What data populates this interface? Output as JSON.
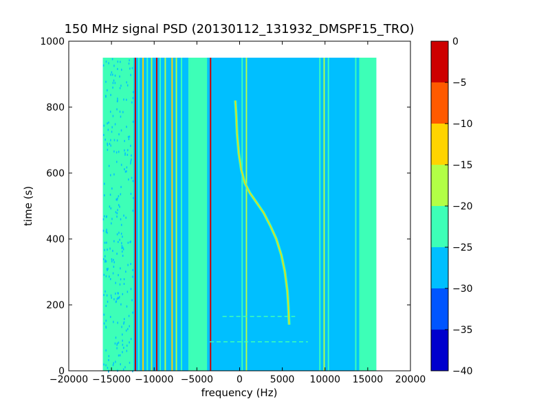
{
  "chart_data": {
    "type": "heatmap",
    "title": "150 MHz signal PSD (20130112_131932_DMSPF15_TRO)",
    "xlabel": "frequency (Hz)",
    "ylabel": "time (s)",
    "xlim": [
      -20000,
      20000
    ],
    "ylim": [
      0,
      1000
    ],
    "xticks": [
      -20000,
      -15000,
      -10000,
      -5000,
      0,
      5000,
      10000,
      15000,
      20000
    ],
    "xtick_labels": [
      "−20000",
      "−15000",
      "−10000",
      "−5000",
      "0",
      "5000",
      "10000",
      "15000",
      "20000"
    ],
    "yticks": [
      0,
      200,
      400,
      600,
      800,
      1000
    ],
    "ytick_labels": [
      "0",
      "200",
      "400",
      "600",
      "800",
      "1000"
    ],
    "data_extent": {
      "freq": [
        -16000,
        16000
      ],
      "time": [
        0,
        950
      ]
    },
    "background_level_db": -27.5,
    "colorbar": {
      "min": -40,
      "max": 0,
      "levels": [
        {
          "from": -40,
          "to": -35,
          "color": "#0000cd"
        },
        {
          "from": -35,
          "to": -30,
          "color": "#0055ff"
        },
        {
          "from": -30,
          "to": -25,
          "color": "#00bfff"
        },
        {
          "from": -25,
          "to": -20,
          "color": "#3dffb7"
        },
        {
          "from": -20,
          "to": -15,
          "color": "#b2ff46"
        },
        {
          "from": -15,
          "to": -10,
          "color": "#ffd400"
        },
        {
          "from": -10,
          "to": -5,
          "color": "#ff5a00"
        },
        {
          "from": -5,
          "to": 0,
          "color": "#cd0000"
        }
      ],
      "ticks": [
        0,
        -5,
        -10,
        -15,
        -20,
        -25,
        -30,
        -35,
        -40
      ],
      "tick_labels": [
        "0",
        "−5",
        "−10",
        "−15",
        "−20",
        "−25",
        "−30",
        "−35",
        "−40"
      ]
    },
    "bands": [
      {
        "name": "left-edge-band",
        "f0": -16000,
        "f1": -12400,
        "level_db": -22.5
      },
      {
        "name": "mid-band",
        "f0": -6000,
        "f1": -3800,
        "level_db": -22.5
      },
      {
        "name": "right-edge-band",
        "f0": 14000,
        "f1": 16000,
        "level_db": -22.5
      }
    ],
    "lines": [
      {
        "f": -12200,
        "level_db": -2.5
      },
      {
        "f": -11800,
        "level_db": -22.5
      },
      {
        "f": -11300,
        "level_db": -12.5
      },
      {
        "f": -10800,
        "level_db": -22.5
      },
      {
        "f": -10300,
        "level_db": -17.5
      },
      {
        "f": -9700,
        "level_db": -2.5
      },
      {
        "f": -9300,
        "level_db": -22.5
      },
      {
        "f": -8700,
        "level_db": -17.5
      },
      {
        "f": -7900,
        "level_db": -12.5
      },
      {
        "f": -7400,
        "level_db": -17.5
      },
      {
        "f": -6800,
        "level_db": -22.5
      },
      {
        "f": -5800,
        "level_db": -22.5
      },
      {
        "f": -3400,
        "level_db": -2.5
      },
      {
        "f": 300,
        "level_db": -22.5
      },
      {
        "f": 800,
        "level_db": -17.5
      },
      {
        "f": 9400,
        "level_db": -22.5
      },
      {
        "f": 9900,
        "level_db": -17.5
      },
      {
        "f": 10400,
        "level_db": -22.5
      },
      {
        "f": 13600,
        "level_db": -22.5
      }
    ],
    "doppler_trace": {
      "level_db": -12.5,
      "points": [
        [
          -500,
          820
        ],
        [
          -400,
          780
        ],
        [
          -300,
          720
        ],
        [
          -100,
          660
        ],
        [
          200,
          610
        ],
        [
          600,
          570
        ],
        [
          1200,
          540
        ],
        [
          2000,
          510
        ],
        [
          2800,
          480
        ],
        [
          3600,
          440
        ],
        [
          4300,
          400
        ],
        [
          4900,
          350
        ],
        [
          5300,
          300
        ],
        [
          5600,
          240
        ],
        [
          5700,
          200
        ],
        [
          5800,
          140
        ]
      ]
    },
    "horizontal_marks": [
      {
        "t": 165,
        "f0": -2000,
        "f1": 6500
      },
      {
        "t": 88,
        "f0": -3500,
        "f1": 8000
      }
    ]
  }
}
